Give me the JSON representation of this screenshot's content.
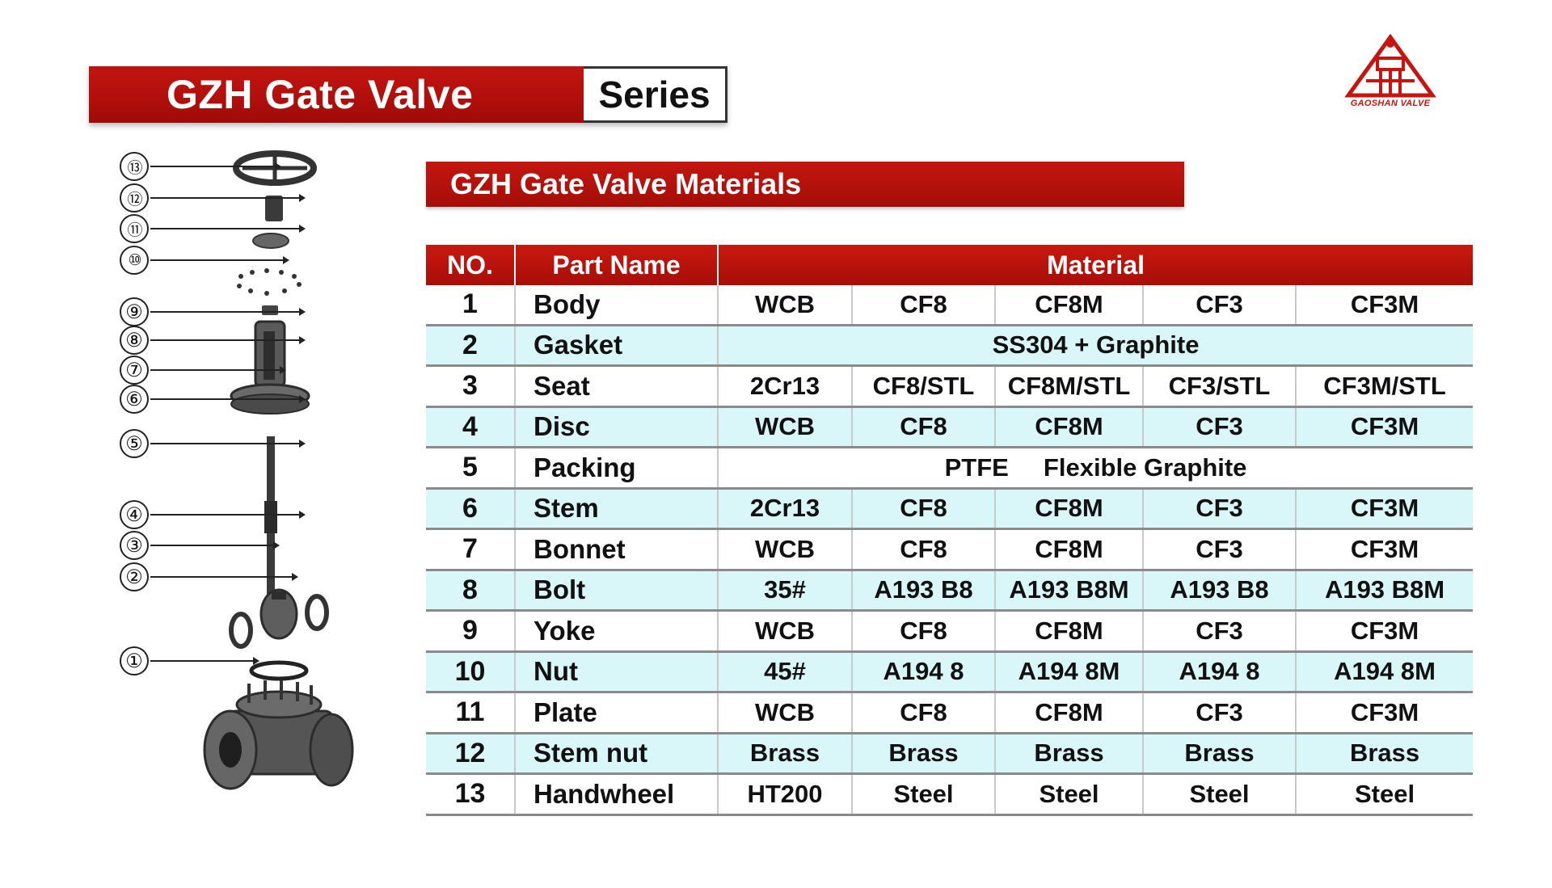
{
  "title": {
    "main": "GZH Gate Valve",
    "suffix": "Series"
  },
  "logo": {
    "text": "GAOSHAN VALVE",
    "icon": "gaoshan-triangle-logo",
    "color": "#c8140f"
  },
  "section_title": "GZH Gate Valve Materials",
  "table": {
    "headers": {
      "no": "NO.",
      "part_name": "Part  Name",
      "material": "Material"
    },
    "rows": [
      {
        "no": "1",
        "name": "Body",
        "materials": [
          "WCB",
          "CF8",
          "CF8M",
          "CF3",
          "CF3M"
        ]
      },
      {
        "no": "2",
        "name": "Gasket",
        "span": "SS304 + Graphite"
      },
      {
        "no": "3",
        "name": "Seat",
        "materials": [
          "2Cr13",
          "CF8/STL",
          "CF8M/STL",
          "CF3/STL",
          "CF3M/STL"
        ]
      },
      {
        "no": "4",
        "name": "Disc",
        "materials": [
          "WCB",
          "CF8",
          "CF8M",
          "CF3",
          "CF3M"
        ]
      },
      {
        "no": "5",
        "name": "Packing",
        "span": "PTFE     Flexible Graphite"
      },
      {
        "no": "6",
        "name": "Stem",
        "materials": [
          "2Cr13",
          "CF8",
          "CF8M",
          "CF3",
          "CF3M"
        ]
      },
      {
        "no": "7",
        "name": "Bonnet",
        "materials": [
          "WCB",
          "CF8",
          "CF8M",
          "CF3",
          "CF3M"
        ]
      },
      {
        "no": "8",
        "name": "Bolt",
        "materials": [
          "35#",
          "A193 B8",
          "A193 B8M",
          "A193 B8",
          "A193 B8M"
        ]
      },
      {
        "no": "9",
        "name": "Yoke",
        "materials": [
          "WCB",
          "CF8",
          "CF8M",
          "CF3",
          "CF3M"
        ]
      },
      {
        "no": "10",
        "name": "Nut",
        "materials": [
          "45#",
          "A194 8",
          "A194 8M",
          "A194 8",
          "A194 8M"
        ]
      },
      {
        "no": "11",
        "name": "Plate",
        "materials": [
          "WCB",
          "CF8",
          "CF8M",
          "CF3",
          "CF3M"
        ]
      },
      {
        "no": "12",
        "name": "Stem nut",
        "materials": [
          "Brass",
          "Brass",
          "Brass",
          "Brass",
          "Brass"
        ]
      },
      {
        "no": "13",
        "name": "Handwheel",
        "materials": [
          "HT200",
          "Steel",
          "Steel",
          "Steel",
          "Steel"
        ]
      }
    ]
  },
  "diagram": {
    "callouts": [
      "⑬",
      "⑫",
      "⑪",
      "⑩",
      "⑨",
      "⑧",
      "⑦",
      "⑥",
      "⑤",
      "④",
      "③",
      "②",
      "①"
    ]
  },
  "colors": {
    "banner_red": "#b5110c",
    "row_alt": "#d9f7f9",
    "border": "#8a8a8a"
  }
}
